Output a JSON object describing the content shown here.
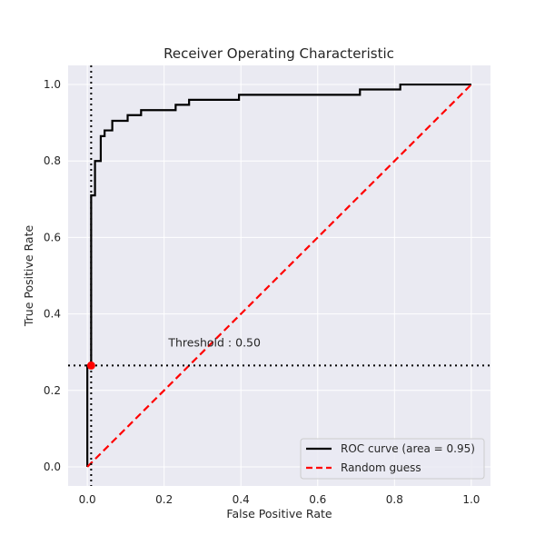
{
  "chart_data": {
    "type": "line",
    "title": "Receiver Operating Characteristic",
    "xlabel": "False Positive Rate",
    "ylabel": "True Positive Rate",
    "xlim": [
      -0.05,
      1.05
    ],
    "ylim": [
      -0.05,
      1.05
    ],
    "xticks": [
      0.0,
      0.2,
      0.4,
      0.6,
      0.8,
      1.0
    ],
    "yticks": [
      0.0,
      0.2,
      0.4,
      0.6,
      0.8,
      1.0
    ],
    "xtick_labels": [
      "0.0",
      "0.2",
      "0.4",
      "0.6",
      "0.8",
      "1.0"
    ],
    "ytick_labels": [
      "0.0",
      "0.2",
      "0.4",
      "0.6",
      "0.8",
      "1.0"
    ],
    "grid": true,
    "background_color": "#eaeaf2",
    "legend_position": "bottom-right",
    "series": [
      {
        "name": "ROC curve (area = 0.95)",
        "color": "#000000",
        "style": "solid",
        "x": [
          0.0,
          0.0,
          0.01,
          0.01,
          0.02,
          0.02,
          0.035,
          0.035,
          0.045,
          0.045,
          0.065,
          0.065,
          0.105,
          0.105,
          0.14,
          0.14,
          0.23,
          0.23,
          0.265,
          0.265,
          0.395,
          0.395,
          0.71,
          0.71,
          0.815,
          0.815,
          1.0
        ],
        "y": [
          0.0,
          0.265,
          0.265,
          0.71,
          0.71,
          0.8,
          0.8,
          0.865,
          0.865,
          0.88,
          0.88,
          0.905,
          0.905,
          0.92,
          0.92,
          0.933,
          0.933,
          0.947,
          0.947,
          0.96,
          0.96,
          0.973,
          0.973,
          0.987,
          0.987,
          1.0,
          1.0
        ]
      },
      {
        "name": "Random guess",
        "color": "#ff0000",
        "style": "dashed",
        "x": [
          0.0,
          1.0
        ],
        "y": [
          0.0,
          1.0
        ]
      }
    ],
    "threshold": {
      "label": "Threshold : 0.50",
      "x": 0.01,
      "y": 0.265,
      "marker_color": "#ff0000"
    }
  }
}
